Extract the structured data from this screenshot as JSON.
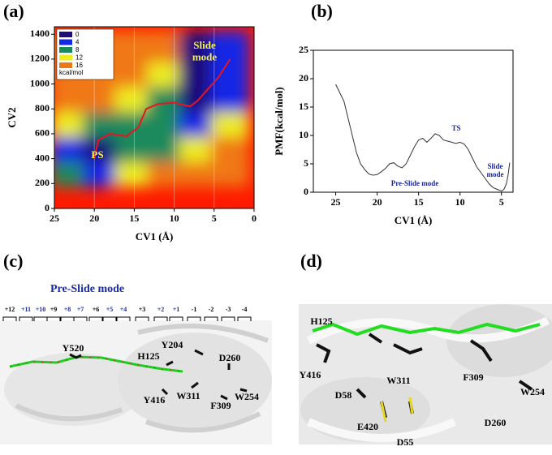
{
  "chart_data": [
    {
      "type": "heatmap",
      "label": "(a)",
      "xlabel": "CV1 (Å)",
      "ylabel": "CV2",
      "xlim": [
        25,
        0
      ],
      "xticks": [
        25,
        20,
        15,
        10,
        5,
        0
      ],
      "ylim": [
        0,
        1460
      ],
      "yticks": [
        0,
        200,
        400,
        600,
        800,
        1000,
        1200,
        1400
      ],
      "x": [
        23,
        19,
        15,
        11,
        7,
        3
      ],
      "y": [
        300,
        500,
        700,
        900,
        1100,
        1300
      ],
      "z": [
        [
          10,
          6,
          12,
          16,
          16,
          16
        ],
        [
          6,
          3,
          8,
          11,
          12,
          16
        ],
        [
          14,
          10,
          9,
          10,
          6,
          12
        ],
        [
          16,
          16,
          13,
          8,
          2,
          5
        ],
        [
          16,
          16,
          16,
          14,
          1,
          4
        ],
        [
          16,
          16,
          16,
          16,
          2,
          6
        ]
      ],
      "legend": {
        "levels": [
          0,
          4,
          8,
          12,
          16
        ],
        "colors": [
          "#1e0c7a",
          "#1428e6",
          "#1a8a5c",
          "#ecec20",
          "#f07814"
        ],
        "unit": "kcal/mol"
      },
      "over_color": "#ff1a00",
      "series": [
        {
          "color": "#e8141e",
          "x": [
            20,
            19.5,
            18,
            16,
            14.5,
            13.5,
            12,
            10,
            8,
            7,
            5.5,
            4.5,
            3.5,
            3
          ],
          "values": [
            400,
            550,
            600,
            580,
            650,
            800,
            840,
            850,
            820,
            870,
            980,
            1050,
            1150,
            1200
          ]
        }
      ],
      "annotations": [
        "Slide mode",
        "PS"
      ]
    },
    {
      "type": "line",
      "label": "(b)",
      "xlabel": "CV1 (Å)",
      "ylabel": "PMF(kcal/mol)",
      "xlim": [
        27.7,
        3.6
      ],
      "xticks": [
        25,
        20,
        15,
        10,
        5
      ],
      "ylim": [
        0,
        25
      ],
      "yticks": [
        0,
        5,
        10,
        15,
        20,
        25
      ],
      "series": [
        {
          "color": "#333333",
          "x": [
            25,
            24.5,
            24,
            23.5,
            23,
            22.5,
            22,
            21.5,
            21,
            20.5,
            20,
            19.5,
            19,
            18.5,
            18,
            17.5,
            17,
            16.5,
            16,
            15.5,
            15,
            14.5,
            14,
            13.5,
            13,
            12.5,
            12,
            11.5,
            11,
            10.5,
            10,
            9.5,
            9,
            8.5,
            8,
            7.5,
            7,
            6.5,
            6,
            5.5,
            5,
            4.7,
            4.4,
            4.2,
            4
          ],
          "values": [
            19,
            17.5,
            16,
            13,
            10,
            7,
            5,
            4,
            3.2,
            3,
            3.1,
            3.6,
            4.2,
            5,
            5.2,
            4.6,
            4.3,
            5,
            6.5,
            8,
            9.2,
            9.5,
            8.8,
            9.5,
            10.3,
            10,
            9.2,
            9,
            8.8,
            8.6,
            8.8,
            8.5,
            7.5,
            6,
            4.5,
            3.5,
            2.5,
            1.5,
            0.8,
            0.5,
            0.2,
            0.5,
            1.5,
            3,
            5.2
          ]
        }
      ],
      "annotations": [
        "TS",
        "Pre-Slide mode",
        "Slide mode"
      ]
    }
  ],
  "panels": [
    {
      "label": "(c)",
      "title": "Pre-Slide mode",
      "subsites": [
        "+12",
        "+11",
        "+10",
        "+9",
        "+8",
        "+7",
        "+6",
        "+5",
        "+4",
        "+3",
        "+2",
        "+1",
        "-1",
        "-2",
        "-3",
        "-4"
      ],
      "residues": [
        "Y520",
        "H125",
        "Y204",
        "D260",
        "Y416",
        "W311",
        "F309",
        "W254"
      ]
    },
    {
      "label": "(d)",
      "residues": [
        "H125",
        "Y416",
        "D58",
        "W311",
        "F309",
        "W254",
        "E420",
        "D55",
        "D260"
      ]
    }
  ]
}
